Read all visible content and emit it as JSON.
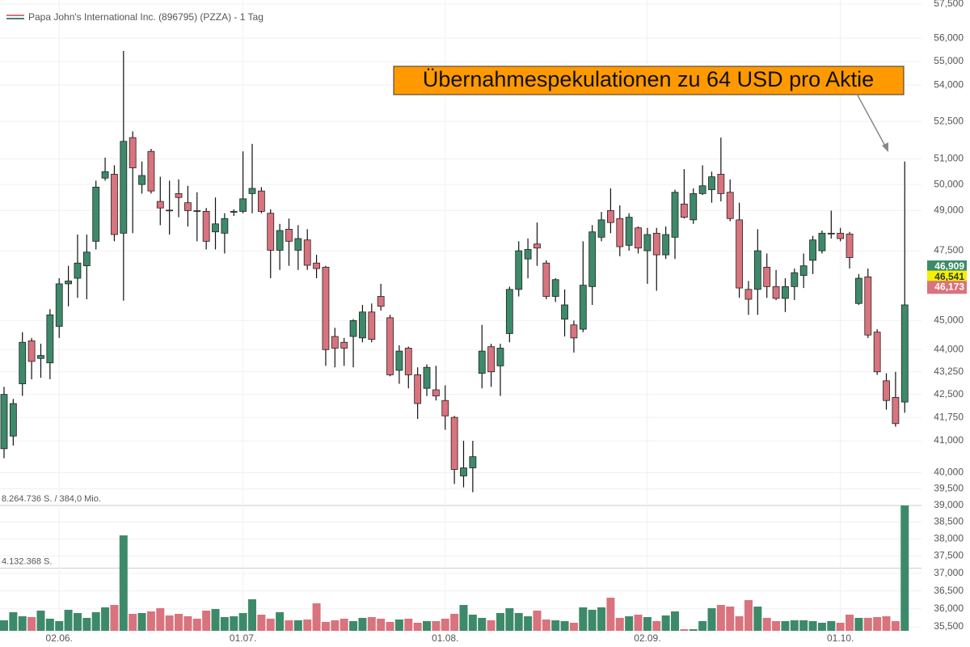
{
  "chart_data": {
    "type": "candlestick",
    "title": "Papa John's International Inc. (896795) (PZZA) - 1 Tag",
    "annotation": {
      "text": "Übernahmespekulationen zu 64 USD pro Aktie",
      "color": "#ff9900"
    },
    "up_color": "#3d8a6a",
    "down_color": "#d9737d",
    "log_scale": true,
    "grid": true,
    "categories": [
      null,
      null,
      null,
      null,
      null,
      null,
      "02.06.",
      null,
      null,
      null,
      null,
      null,
      null,
      null,
      null,
      null,
      null,
      null,
      null,
      null,
      null,
      null,
      null,
      null,
      null,
      null,
      "01.07.",
      null,
      null,
      null,
      null,
      null,
      null,
      null,
      null,
      null,
      null,
      null,
      null,
      null,
      null,
      null,
      null,
      null,
      null,
      null,
      null,
      null,
      "01.08.",
      null,
      null,
      null,
      null,
      null,
      null,
      null,
      null,
      null,
      null,
      null,
      null,
      null,
      null,
      null,
      null,
      null,
      null,
      null,
      null,
      null,
      "02.09.",
      null,
      null,
      null,
      null,
      null,
      null,
      null,
      null,
      null,
      null,
      null,
      null,
      null,
      null,
      null,
      null,
      null,
      null,
      null,
      null,
      "01.10.",
      null,
      null,
      null,
      null,
      null,
      null,
      null
    ],
    "open": [
      40.75,
      41.15,
      42.85,
      44.3,
      43.7,
      43.55,
      44.8,
      46.3,
      46.5,
      46.95,
      47.85,
      50.25,
      50.4,
      48.15,
      51.85,
      50.0,
      51.3,
      49.35,
      49.02,
      49.65,
      49.3,
      49.0,
      48.97,
      48.2,
      48.15,
      48.95,
      48.97,
      49.65,
      49.75,
      48.9,
      47.52,
      48.3,
      47.52,
      47.9,
      47.05,
      46.9,
      44.45,
      44.25,
      44.45,
      44.4,
      45.3,
      45.85,
      45.1,
      43.3,
      44.05,
      43.15,
      42.7,
      42.65,
      42.3,
      41.75,
      39.9,
      40.15,
      43.2,
      44.1,
      43.45,
      44.55,
      46.1,
      47.2,
      47.75,
      47.05,
      45.85,
      45.05,
      44.85,
      44.7,
      46.2,
      48.0,
      49.0,
      48.7,
      47.7,
      48.35,
      47.5,
      48.15,
      47.35,
      48.0,
      49.25,
      48.65,
      49.65,
      49.8,
      50.4,
      49.7,
      48.65,
      46.1,
      46.1,
      46.9,
      46.2,
      45.78,
      46.2,
      46.6,
      47.15,
      47.5,
      48.12,
      48.15,
      48.12,
      45.6,
      46.55,
      44.6,
      42.95,
      42.4,
      42.25
    ],
    "high": [
      42.75,
      42.35,
      44.6,
      44.4,
      44.2,
      45.4,
      46.5,
      46.95,
      48.1,
      48.1,
      50.15,
      51.05,
      50.75,
      55.45,
      52.1,
      50.9,
      51.4,
      50.3,
      50.15,
      50.2,
      49.95,
      49.7,
      49.1,
      49.5,
      48.9,
      49.05,
      51.3,
      51.6,
      49.9,
      49.05,
      48.5,
      48.7,
      48.45,
      48.3,
      47.35,
      46.95,
      44.75,
      44.4,
      45.05,
      45.55,
      45.6,
      46.3,
      45.2,
      44.15,
      44.1,
      43.4,
      43.5,
      43.45,
      42.8,
      41.8,
      41.0,
      41.0,
      44.85,
      44.2,
      44.2,
      46.2,
      47.85,
      47.95,
      48.55,
      47.15,
      46.5,
      46.1,
      45.0,
      47.85,
      48.45,
      48.95,
      49.85,
      49.2,
      48.9,
      48.4,
      48.35,
      48.35,
      48.4,
      49.8,
      50.6,
      49.85,
      50.75,
      50.5,
      51.85,
      50.2,
      49.3,
      46.4,
      48.3,
      47.4,
      46.8,
      46.5,
      46.85,
      47.4,
      48.05,
      48.25,
      49.0,
      48.35,
      48.2,
      46.65,
      46.85,
      44.7,
      43.2,
      43.25,
      50.9
    ],
    "low": [
      40.45,
      40.85,
      42.45,
      43.0,
      43.05,
      43.0,
      44.4,
      45.5,
      45.8,
      45.75,
      47.55,
      50.15,
      47.85,
      45.7,
      48.15,
      49.65,
      49.65,
      48.45,
      48.1,
      48.75,
      48.4,
      47.85,
      47.55,
      47.55,
      47.4,
      48.8,
      48.9,
      48.9,
      48.9,
      46.5,
      46.8,
      46.95,
      46.8,
      46.8,
      46.5,
      43.45,
      43.4,
      43.45,
      43.4,
      44.25,
      44.25,
      45.35,
      43.1,
      42.85,
      42.7,
      41.7,
      42.45,
      42.3,
      41.35,
      39.65,
      39.55,
      39.4,
      42.7,
      42.75,
      42.45,
      44.25,
      45.85,
      46.5,
      46.95,
      45.75,
      45.65,
      44.45,
      43.9,
      44.6,
      45.55,
      47.85,
      48.15,
      47.3,
      47.5,
      47.4,
      46.3,
      46.05,
      47.2,
      47.2,
      48.7,
      48.5,
      49.6,
      49.3,
      49.35,
      48.6,
      45.8,
      45.2,
      45.2,
      45.8,
      45.72,
      45.3,
      45.72,
      46.15,
      46.65,
      47.4,
      47.95,
      47.85,
      46.85,
      45.55,
      44.4,
      43.15,
      42.0,
      41.45,
      41.9
    ],
    "close": [
      42.5,
      42.2,
      44.25,
      43.6,
      43.8,
      45.2,
      46.3,
      46.4,
      47.05,
      47.45,
      49.9,
      50.5,
      48.1,
      51.7,
      50.65,
      50.35,
      49.75,
      49.1,
      49.0,
      49.5,
      49.0,
      48.98,
      47.85,
      48.5,
      48.7,
      48.97,
      49.45,
      49.85,
      48.97,
      47.52,
      48.25,
      47.85,
      47.95,
      46.97,
      46.85,
      44.0,
      44.05,
      44.05,
      45.0,
      45.3,
      44.35,
      45.5,
      43.15,
      43.95,
      43.15,
      42.2,
      43.4,
      42.45,
      41.8,
      40.1,
      40.15,
      40.5,
      43.95,
      43.25,
      44.05,
      46.1,
      47.5,
      47.55,
      47.6,
      45.85,
      46.45,
      45.55,
      44.4,
      46.25,
      48.2,
      48.65,
      48.55,
      47.65,
      48.75,
      47.6,
      48.1,
      47.35,
      48.1,
      49.7,
      48.75,
      49.65,
      49.95,
      50.3,
      49.65,
      48.7,
      46.15,
      45.75,
      47.5,
      46.2,
      45.78,
      46.2,
      46.7,
      46.95,
      47.9,
      48.15,
      48.15,
      47.95,
      47.25,
      46.5,
      44.5,
      43.25,
      42.3,
      41.55,
      45.55
    ],
    "volume": [
      693000,
      1226000,
      959000,
      906000,
      1333000,
      800000,
      640000,
      1386000,
      1173000,
      853000,
      1226000,
      1546000,
      1706000,
      6292000,
      1120000,
      1173000,
      1280000,
      1492000,
      1013000,
      1120000,
      959000,
      800000,
      1333000,
      1439000,
      906000,
      959000,
      1173000,
      2079000,
      1066000,
      800000,
      1226000,
      693000,
      693000,
      746000,
      1812000,
      586000,
      693000,
      800000,
      640000,
      853000,
      906000,
      800000,
      586000,
      746000,
      800000,
      533000,
      640000,
      640000,
      800000,
      1120000,
      1706000,
      1066000,
      853000,
      693000,
      1173000,
      1492000,
      1173000,
      959000,
      1333000,
      746000,
      693000,
      640000,
      533000,
      1546000,
      1386000,
      1546000,
      2185000,
      853000,
      959000,
      1066000,
      906000,
      640000,
      1013000,
      1280000,
      107000,
      107000,
      640000,
      1492000,
      1706000,
      1599000,
      959000,
      2025000,
      1599000,
      853000,
      640000,
      640000,
      693000,
      693000,
      640000,
      533000,
      640000,
      533000,
      1066000,
      853000,
      853000,
      906000,
      959000,
      640000,
      8264736
    ],
    "ylim": [
      35.39,
      57.68
    ],
    "yticks": [
      {
        "value": 57.5,
        "label": "57,500"
      },
      {
        "value": 56,
        "label": "56,000"
      },
      {
        "value": 55,
        "label": "55,000"
      },
      {
        "value": 54,
        "label": "54,000"
      },
      {
        "value": 52.5,
        "label": "52,500"
      },
      {
        "value": 51,
        "label": "51,000"
      },
      {
        "value": 50,
        "label": "50,000"
      },
      {
        "value": 49,
        "label": "49,000"
      },
      {
        "value": 47.5,
        "label": "47,500"
      },
      {
        "value": 45,
        "label": "45,000"
      },
      {
        "value": 44,
        "label": "44,000"
      },
      {
        "value": 43.25,
        "label": "43,250"
      },
      {
        "value": 42.5,
        "label": "42,500"
      },
      {
        "value": 41.75,
        "label": "41,750"
      },
      {
        "value": 41,
        "label": "41,000"
      },
      {
        "value": 40,
        "label": "40,000"
      },
      {
        "value": 39.5,
        "label": "39,500"
      },
      {
        "value": 39,
        "label": "39,000"
      },
      {
        "value": 38.5,
        "label": "38,500"
      },
      {
        "value": 38,
        "label": "38,000"
      },
      {
        "value": 37.5,
        "label": "37,500"
      },
      {
        "value": 37,
        "label": "37,000"
      },
      {
        "value": 36.5,
        "label": "36,500"
      },
      {
        "value": 36,
        "label": "36,000"
      },
      {
        "value": 35.5,
        "label": "35,500"
      }
    ],
    "vlim": [
      0,
      8264736
    ],
    "vticks": [
      {
        "value": 8264736,
        "label": "8.264.736 S. / 384,0 Mio."
      },
      {
        "value": 4132368,
        "label": "4.132.368 S."
      }
    ],
    "price_tags": [
      {
        "value": 46.909,
        "label": "46,909"
      },
      {
        "value": 46.541,
        "label": "46,541"
      },
      {
        "value": 46.173,
        "label": "46,173"
      }
    ],
    "price_tag_colors": [
      "#3d8a6a",
      "#f2f200",
      "#d9737d"
    ]
  }
}
